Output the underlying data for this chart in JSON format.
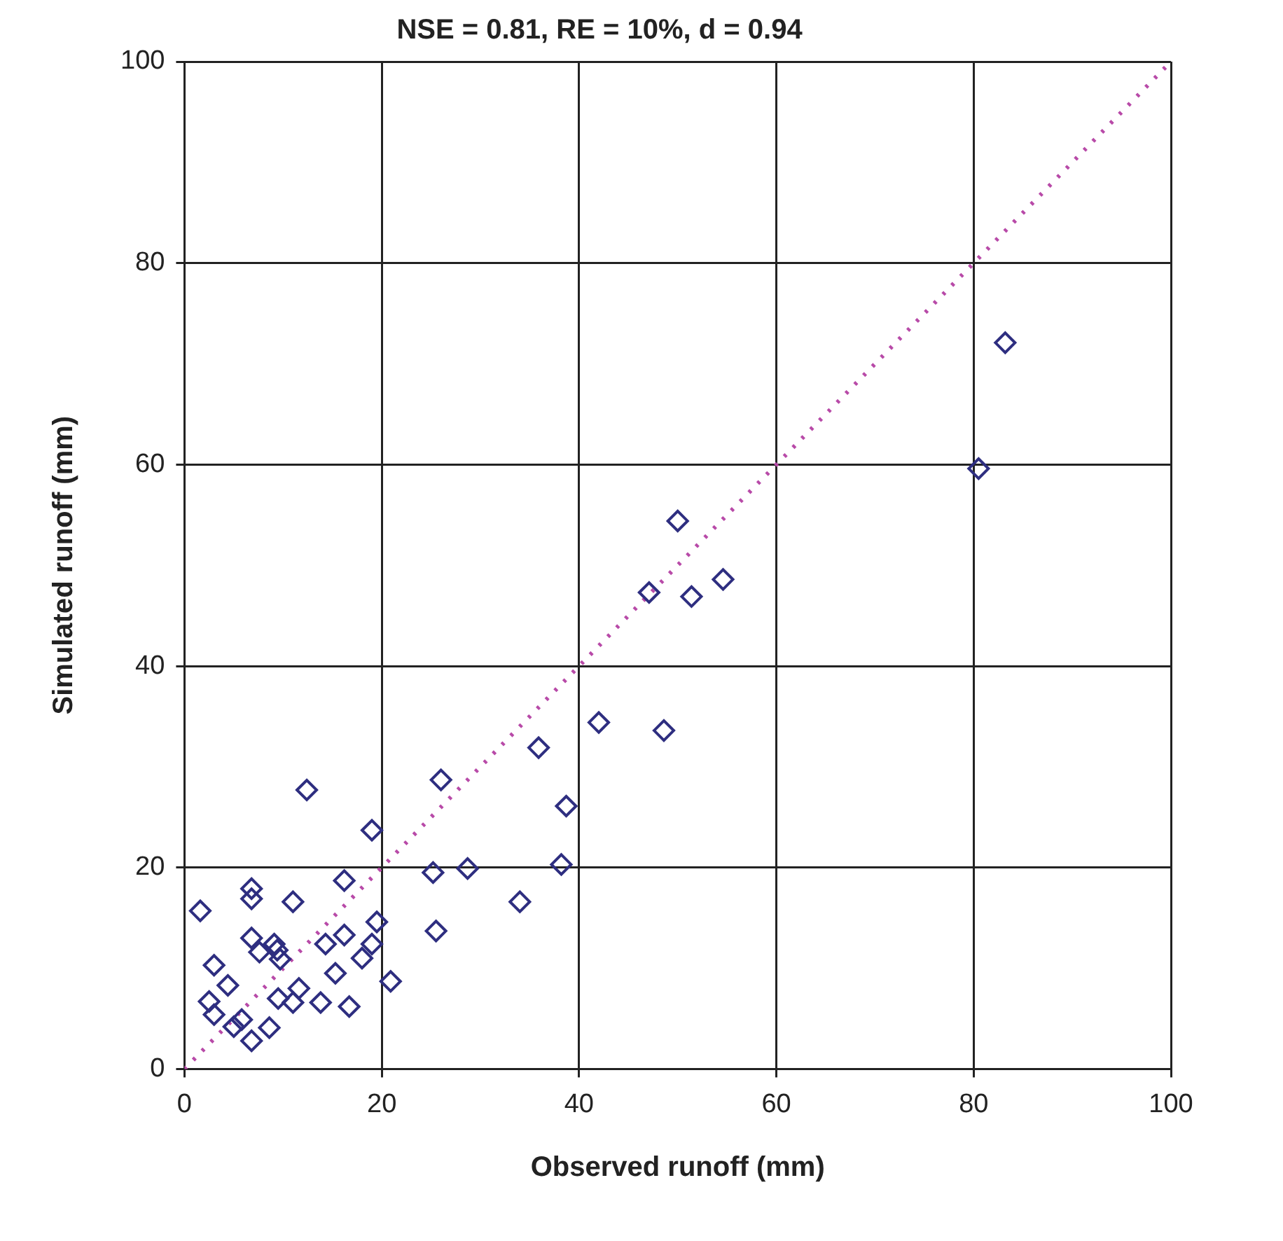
{
  "chart_data": {
    "type": "scatter",
    "title": "NSE = 0.81, RE = 10%, d = 0.94",
    "xlabel": "Observed runoff (mm)",
    "ylabel": "Simulated runoff (mm)",
    "xlim": [
      0,
      100
    ],
    "xticks": [
      0,
      20,
      40,
      60,
      80,
      100
    ],
    "ylim": [
      0,
      100
    ],
    "yticks": [
      0,
      20,
      40,
      60,
      80,
      100
    ],
    "grid": true,
    "legend": false,
    "series": [
      {
        "color": "#2e2e80",
        "marker": "diamond",
        "x": [
          12.4,
          19.0,
          26.0,
          25.2,
          28.7,
          25.5,
          16.2,
          6.8,
          6.8,
          11.0,
          1.6,
          19.5,
          16.2,
          14.3,
          19.0,
          6.8,
          7.6,
          9.1,
          9.4,
          9.7,
          18.0,
          3.0,
          15.3,
          20.9,
          4.4,
          11.6,
          9.5,
          11.0,
          13.8,
          16.7,
          2.5,
          3.0,
          5.8,
          5.0,
          8.6,
          6.8,
          50.0,
          47.1,
          51.4,
          54.6,
          42.0,
          48.6,
          35.9,
          38.7,
          38.2,
          34.0,
          80.5,
          83.2
        ],
        "values": [
          27.7,
          23.7,
          28.7,
          19.5,
          19.9,
          13.7,
          18.7,
          17.9,
          16.9,
          16.6,
          15.7,
          14.6,
          13.3,
          12.4,
          12.4,
          13.0,
          11.6,
          12.4,
          11.8,
          10.9,
          11.0,
          10.3,
          9.5,
          8.7,
          8.3,
          8.0,
          7.0,
          6.6,
          6.6,
          6.2,
          6.7,
          5.4,
          4.9,
          4.2,
          4.1,
          2.8,
          54.4,
          47.3,
          46.9,
          48.6,
          34.4,
          33.6,
          31.9,
          26.1,
          20.3,
          16.6,
          59.6,
          72.1
        ]
      },
      {
        "type": "line",
        "color": "#b84aa8",
        "line_style": "dotted",
        "marker": "none",
        "x": [
          0,
          100
        ],
        "values": [
          0,
          100
        ]
      }
    ]
  }
}
